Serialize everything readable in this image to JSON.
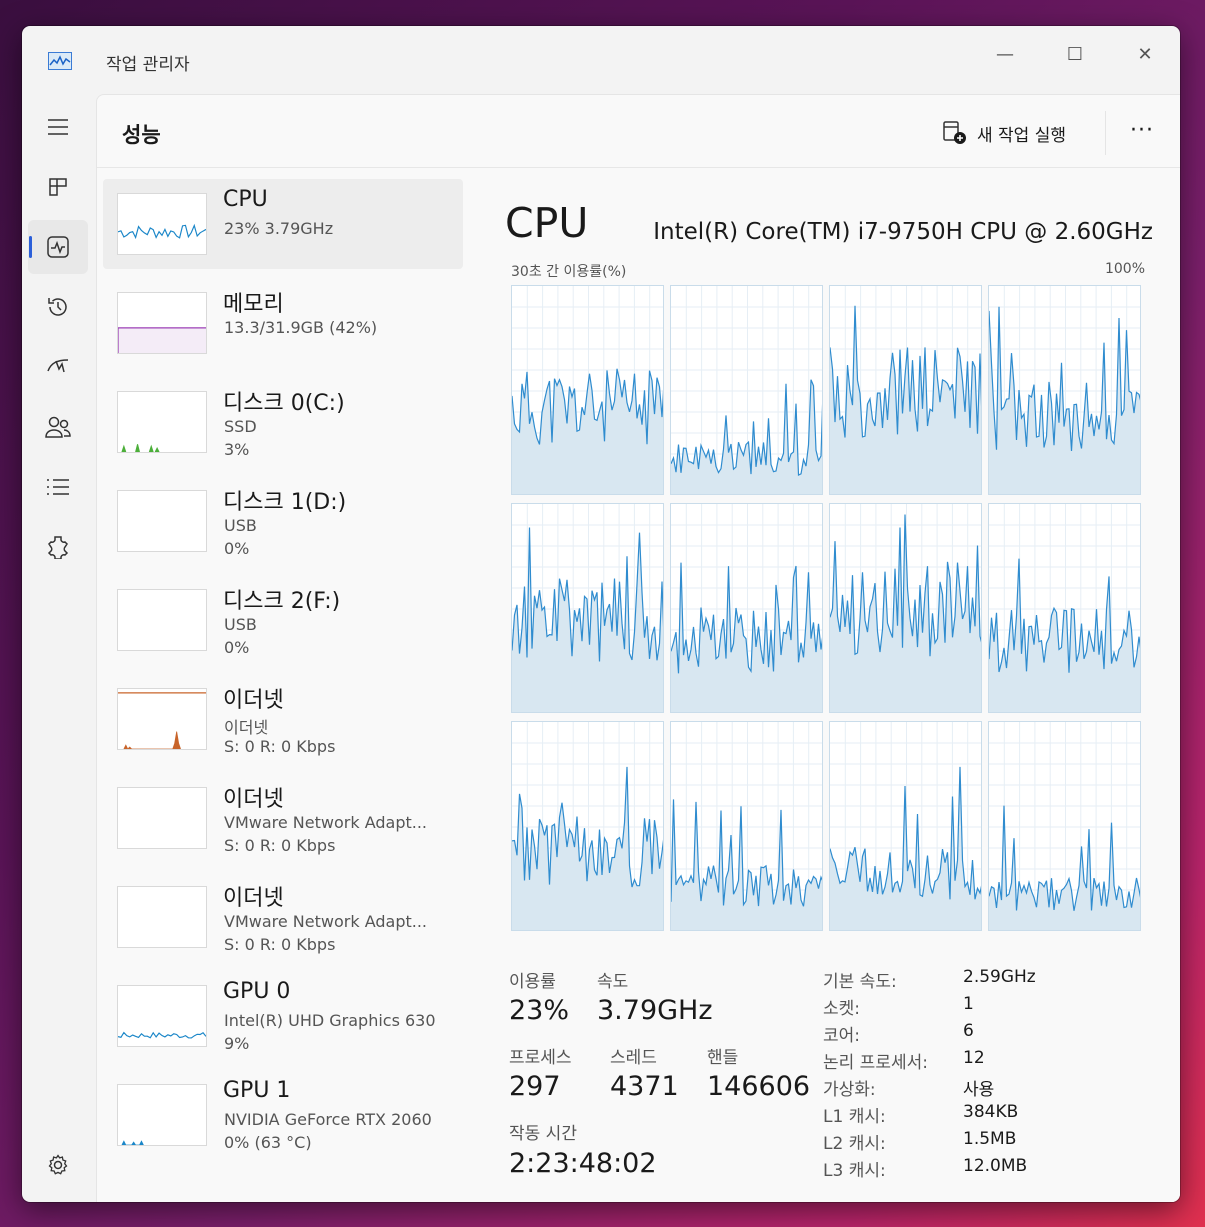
{
  "app": {
    "title": "작업 관리자"
  },
  "window_controls": {
    "minimize": "—",
    "maximize": "☐",
    "close": "✕"
  },
  "rail": {
    "items": [
      "menu-icon",
      "processes-icon",
      "performance-icon",
      "app-history-icon",
      "startup-apps-icon",
      "users-icon",
      "details-icon",
      "services-icon"
    ],
    "settings": "settings-icon",
    "active": "performance-icon"
  },
  "header": {
    "title": "성능",
    "new_task": "새 작업 실행",
    "more": "···"
  },
  "devices": [
    {
      "name": "CPU",
      "sub1": "23% 3.79GHz",
      "sub2": "",
      "color": "#1a86c8",
      "selected": true
    },
    {
      "name": "메모리",
      "sub1": "13.3/31.9GB (42%)",
      "sub2": "",
      "color": "#9b3fb5",
      "fill": 0.42
    },
    {
      "name": "디스크 0(C:)",
      "sub1": "SSD",
      "sub2": "3%",
      "color": "#4caf3a"
    },
    {
      "name": "디스크 1(D:)",
      "sub1": "USB",
      "sub2": "0%",
      "color": "#4caf3a"
    },
    {
      "name": "디스크 2(F:)",
      "sub1": "USB",
      "sub2": "0%",
      "color": "#4caf3a"
    },
    {
      "name": "이더넷",
      "sub1": "이더넷",
      "sub2": "S: 0 R: 0 Kbps",
      "color": "#c8642a"
    },
    {
      "name": "이더넷",
      "sub1": "VMware Network Adapt...",
      "sub2": "S: 0 R: 0 Kbps",
      "color": "#c8642a"
    },
    {
      "name": "이더넷",
      "sub1": "VMware Network Adapt...",
      "sub2": "S: 0 R: 0 Kbps",
      "color": "#c8642a"
    },
    {
      "name": "GPU 0",
      "sub1": "Intel(R) UHD Graphics 630",
      "sub2": "9%",
      "color": "#1a86c8"
    },
    {
      "name": "GPU 1",
      "sub1": "NVIDIA GeForce RTX 2060",
      "sub2": "0% (63 °C)",
      "color": "#1a86c8"
    }
  ],
  "detail": {
    "title": "CPU",
    "model": "Intel(R) Core(TM) i7-9750H CPU @ 2.60GHz",
    "util_label": "30초 간 이용률(%)",
    "util_max": "100%",
    "core_count": 12,
    "stats": {
      "util_label": "이용률",
      "util_value": "23%",
      "speed_label": "속도",
      "speed_value": "3.79GHz",
      "proc_label": "프로세스",
      "proc_value": "297",
      "thread_label": "스레드",
      "thread_value": "4371",
      "handle_label": "핸들",
      "handle_value": "146606",
      "uptime_label": "작동 시간",
      "uptime_value": "2:23:48:02"
    },
    "specs": [
      {
        "k": "기본 속도:",
        "v": "2.59GHz"
      },
      {
        "k": "소켓:",
        "v": "1"
      },
      {
        "k": "코어:",
        "v": "6"
      },
      {
        "k": "논리 프로세서:",
        "v": "12"
      },
      {
        "k": "가상화:",
        "v": "사용"
      },
      {
        "k": "L1 캐시:",
        "v": "384KB"
      },
      {
        "k": "L2 캐시:",
        "v": "1.5MB"
      },
      {
        "k": "L3 캐시:",
        "v": "12.0MB"
      }
    ]
  }
}
